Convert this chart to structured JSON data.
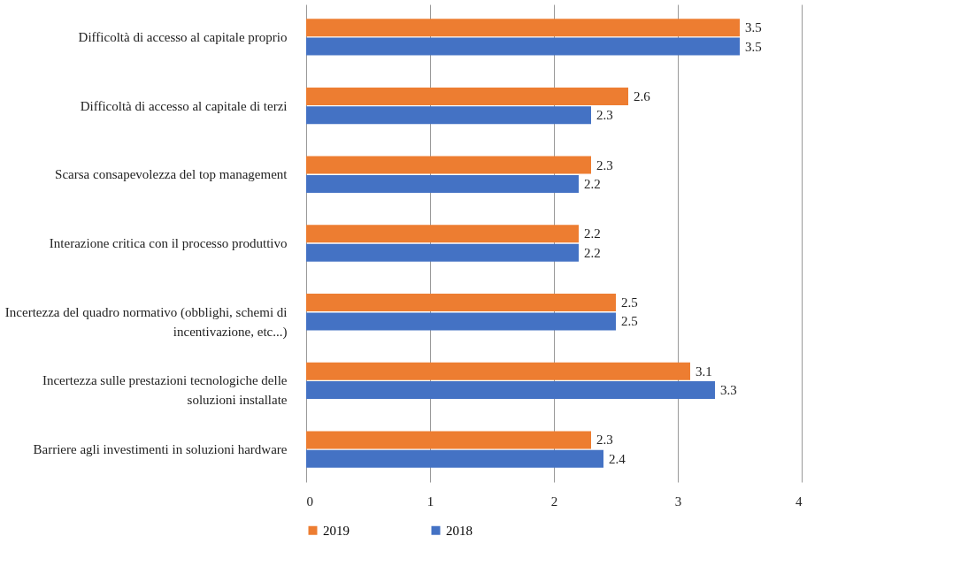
{
  "chart_data": {
    "type": "bar",
    "orientation": "horizontal",
    "categories": [
      "Difficoltà di accesso al capitale proprio",
      "Difficoltà di accesso al capitale di terzi",
      "Scarsa consapevolezza del top management",
      "Interazione critica con il processo produttivo",
      "Incertezza del quadro normativo (obblighi, schemi di incentivazione, etc...)",
      "Incertezza sulle prestazioni tecnologiche delle soluzioni installate",
      "Barriere agli investimenti in soluzioni hardware"
    ],
    "series": [
      {
        "name": "2019",
        "color": "#ed7d31",
        "values": [
          3.5,
          2.6,
          2.3,
          2.2,
          2.5,
          3.1,
          2.3
        ]
      },
      {
        "name": "2018",
        "color": "#4472c4",
        "values": [
          3.5,
          2.3,
          2.2,
          2.2,
          2.5,
          3.3,
          2.4
        ]
      }
    ],
    "xlim": [
      0,
      4
    ],
    "xticks": [
      0,
      1,
      2,
      3,
      4
    ],
    "grid": "x",
    "legend": "bottom",
    "data_labels": true
  }
}
